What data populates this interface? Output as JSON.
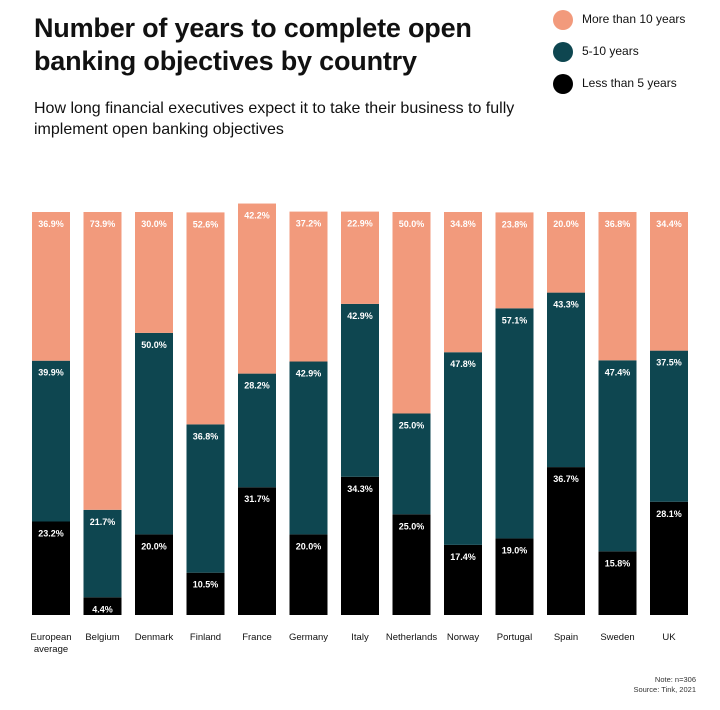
{
  "title": "Number of years to complete open banking objectives by country",
  "subtitle": "How long financial executives expect it to take their business to fully implement open banking objectives",
  "legend": [
    {
      "label": "More than 10 years",
      "color": "#F29A7C"
    },
    {
      "label": "5-10 years",
      "color": "#0E4650"
    },
    {
      "label": "Less than 5 years",
      "color": "#000000"
    }
  ],
  "note": {
    "line1": "Note: n=306",
    "line2": "Source: Tink, 2021"
  },
  "chart_data": {
    "type": "bar",
    "stacked": true,
    "orientation": "vertical",
    "categories": [
      "European average",
      "Belgium",
      "Denmark",
      "Finland",
      "France",
      "Germany",
      "Italy",
      "Netherlands",
      "Norway",
      "Portugal",
      "Spain",
      "Sweden",
      "UK"
    ],
    "series": [
      {
        "name": "Less than 5 years",
        "color": "#000000",
        "values": [
          23.2,
          4.4,
          20.0,
          10.5,
          31.7,
          20.0,
          34.3,
          25.0,
          17.4,
          19.0,
          36.7,
          15.8,
          28.1
        ]
      },
      {
        "name": "5-10 years",
        "color": "#0E4650",
        "values": [
          39.9,
          21.7,
          50.0,
          36.8,
          28.2,
          42.9,
          42.9,
          25.0,
          47.8,
          57.1,
          43.3,
          47.4,
          37.5
        ]
      },
      {
        "name": "More than 10 years",
        "color": "#F29A7C",
        "values": [
          36.9,
          73.9,
          30.0,
          52.6,
          42.2,
          37.2,
          22.9,
          50.0,
          34.8,
          23.8,
          20.0,
          36.8,
          34.4
        ]
      }
    ],
    "value_suffix": "%",
    "ylim": [
      0,
      100
    ],
    "axes_visible": false,
    "grid": false,
    "legend_position": "top-right"
  }
}
